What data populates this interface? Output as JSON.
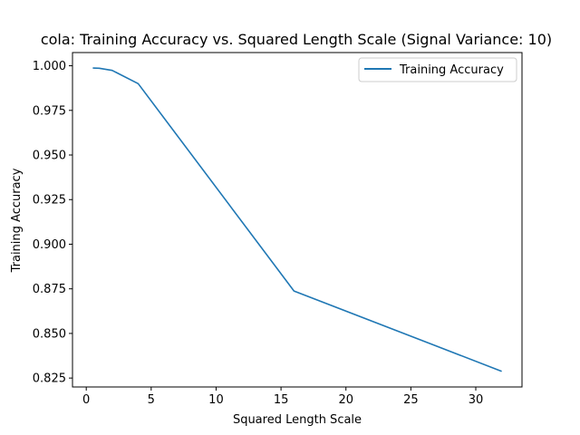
{
  "chart_data": {
    "type": "line",
    "title": "cola: Training Accuracy vs. Squared Length Scale (Signal Variance: 10)",
    "xlabel": "Squared Length Scale",
    "ylabel": "Training Accuracy",
    "xlim": [
      -1.06,
      33.56
    ],
    "ylim": [
      0.82,
      1.0074
    ],
    "xticks": [
      0,
      5,
      10,
      15,
      20,
      25,
      30
    ],
    "yticks": [
      0.825,
      0.85,
      0.875,
      0.9,
      0.925,
      0.95,
      0.975,
      1.0
    ],
    "ytick_labels": [
      "0.825",
      "0.850",
      "0.875",
      "0.900",
      "0.925",
      "0.950",
      "0.975",
      "1.000"
    ],
    "grid": false,
    "legend_position": "top-right",
    "series": [
      {
        "name": "Training Accuracy",
        "color": "#1f77b4",
        "x": [
          0.5,
          1,
          2,
          4,
          16,
          32
        ],
        "y": [
          0.9987,
          0.9986,
          0.9974,
          0.99,
          0.8738,
          0.8288
        ]
      }
    ]
  }
}
